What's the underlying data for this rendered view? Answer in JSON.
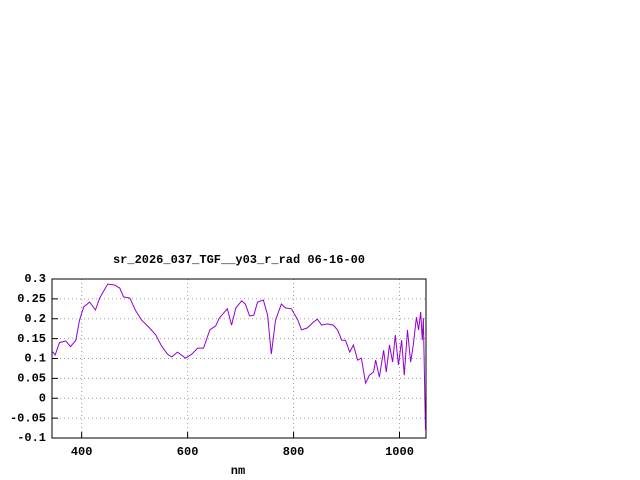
{
  "chart_data": {
    "type": "line",
    "title": "sr_2026_037_TGF__y03_r_rad 06-16-00",
    "x_label": "nm",
    "x": [
      344,
      350,
      358,
      370,
      379,
      389,
      396,
      404,
      415,
      426,
      434,
      449,
      462,
      472,
      479,
      491,
      502,
      513,
      528,
      540,
      551,
      562,
      570,
      581,
      596,
      608,
      619,
      630,
      642,
      653,
      660,
      675,
      683,
      691,
      702,
      709,
      717,
      725,
      732,
      743,
      751,
      758,
      766,
      777,
      785,
      796,
      808,
      815,
      826,
      838,
      845,
      853,
      864,
      875,
      883,
      891,
      898,
      906,
      913,
      921,
      928,
      936,
      943,
      951,
      955,
      962,
      970,
      975,
      981,
      987,
      992,
      998,
      1004,
      1009,
      1015,
      1021,
      1026,
      1032,
      1036,
      1040,
      1043,
      1045,
      1049
    ],
    "values": [
      0.119,
      0.109,
      0.14,
      0.144,
      0.13,
      0.146,
      0.197,
      0.23,
      0.242,
      0.222,
      0.252,
      0.287,
      0.285,
      0.277,
      0.255,
      0.252,
      0.22,
      0.197,
      0.177,
      0.159,
      0.131,
      0.111,
      0.104,
      0.116,
      0.101,
      0.111,
      0.126,
      0.126,
      0.172,
      0.182,
      0.202,
      0.225,
      0.184,
      0.227,
      0.245,
      0.237,
      0.207,
      0.209,
      0.242,
      0.247,
      0.209,
      0.111,
      0.197,
      0.237,
      0.227,
      0.225,
      0.197,
      0.172,
      0.177,
      0.192,
      0.199,
      0.184,
      0.187,
      0.184,
      0.172,
      0.146,
      0.146,
      0.116,
      0.134,
      0.096,
      0.101,
      0.038,
      0.058,
      0.066,
      0.096,
      0.053,
      0.121,
      0.066,
      0.134,
      0.091,
      0.159,
      0.084,
      0.146,
      0.058,
      0.172,
      0.091,
      0.134,
      0.204,
      0.172,
      0.217,
      0.146,
      0.202,
      -0.08
    ],
    "color": "#9400d3",
    "xlim": [
      344,
      1050
    ],
    "xticks": [
      400,
      600,
      800,
      1000
    ],
    "ylim": [
      -0.1,
      0.3
    ],
    "yticks": [
      -0.1,
      -0.05,
      0,
      0.05,
      0.1,
      0.15,
      0.2,
      0.25,
      0.3
    ],
    "grid": true
  }
}
